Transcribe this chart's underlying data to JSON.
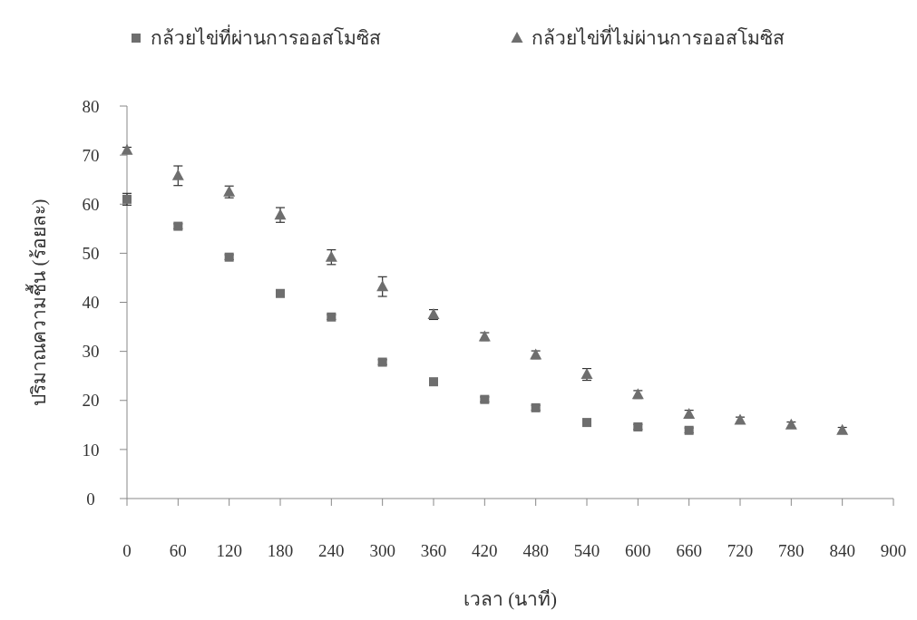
{
  "chart_data": {
    "type": "scatter",
    "xlabel": "เวลา (นาที)",
    "ylabel": "ปริมาณความชื้น (ร้อยละ)",
    "xlim": [
      0,
      900
    ],
    "xticks": [
      0,
      60,
      120,
      180,
      240,
      300,
      360,
      420,
      480,
      540,
      600,
      660,
      720,
      780,
      840,
      900
    ],
    "ylim": [
      0,
      80
    ],
    "yticks": [
      0,
      10,
      20,
      30,
      40,
      50,
      60,
      70,
      80
    ],
    "legend": "top",
    "grid": false,
    "series": [
      {
        "name": "กล้วยไข่ที่ผ่านการออสโมซิส",
        "color": "#6e6e6e",
        "marker": "square",
        "x": [
          0,
          60,
          120,
          180,
          240,
          300,
          360,
          420,
          480,
          540,
          600,
          660
        ],
        "values": [
          61,
          55.5,
          49.2,
          41.8,
          37,
          27.8,
          23.8,
          20.2,
          18.5,
          15.5,
          14.6,
          13.9
        ],
        "errors": [
          1.2,
          0.5,
          0.5,
          0.5,
          0.5,
          0.5,
          0.5,
          0.5,
          0.5,
          0.5,
          0.5,
          0.5
        ]
      },
      {
        "name": "กล้วยไข่ที่ไม่ผ่านการออสโมซิส",
        "color": "#6e6e6e",
        "marker": "triangle",
        "x": [
          0,
          60,
          120,
          180,
          240,
          300,
          360,
          420,
          480,
          540,
          600,
          660,
          720,
          780,
          840
        ],
        "values": [
          71,
          65.8,
          62.5,
          57.8,
          49.2,
          43.2,
          37.5,
          33,
          29.3,
          25.3,
          21.2,
          17.2,
          16,
          15,
          13.9
        ],
        "errors": [
          0.6,
          2,
          1.2,
          1.5,
          1.5,
          2,
          1,
          0.8,
          0.8,
          1.2,
          0.8,
          0.8,
          0.6,
          0.6,
          0.6
        ]
      }
    ]
  }
}
